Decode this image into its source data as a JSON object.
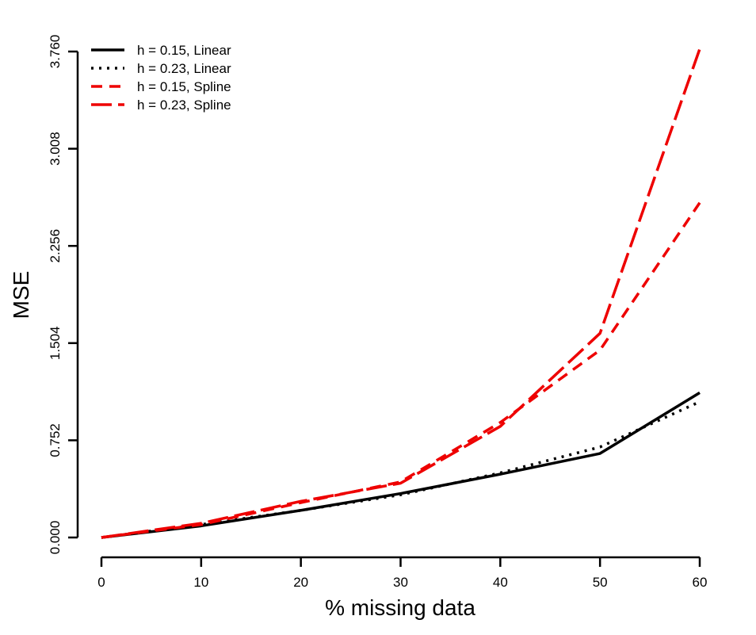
{
  "chart_data": {
    "type": "line",
    "title": "",
    "xlabel": "% missing data",
    "ylabel": "MSE",
    "x": [
      0,
      10,
      20,
      30,
      40,
      50,
      60
    ],
    "xticks": [
      "0",
      "10",
      "20",
      "30",
      "40",
      "50",
      "60"
    ],
    "yticks": [
      "0.000",
      "0.752",
      "1.504",
      "2.256",
      "3.008",
      "3.760"
    ],
    "xlim": [
      0,
      60
    ],
    "ylim": [
      0,
      3.76
    ],
    "grid": false,
    "legend_position": "top-left",
    "series": [
      {
        "name": "h = 0.15, Linear",
        "color": "#000000",
        "dash": "solid",
        "values": [
          0.0,
          0.09,
          0.21,
          0.34,
          0.49,
          0.65,
          1.12
        ]
      },
      {
        "name": "h = 0.23, Linear",
        "color": "#000000",
        "dash": "dotted",
        "values": [
          0.0,
          0.1,
          0.21,
          0.33,
          0.5,
          0.7,
          1.05
        ]
      },
      {
        "name": "h = 0.15, Spline",
        "color": "#ee0000",
        "dash": "dashed",
        "values": [
          0.0,
          0.1,
          0.27,
          0.43,
          0.89,
          1.45,
          2.59
        ]
      },
      {
        "name": "h = 0.23, Spline",
        "color": "#ee0000",
        "dash": "longdash",
        "values": [
          0.0,
          0.11,
          0.28,
          0.42,
          0.86,
          1.58,
          3.78
        ]
      }
    ]
  }
}
